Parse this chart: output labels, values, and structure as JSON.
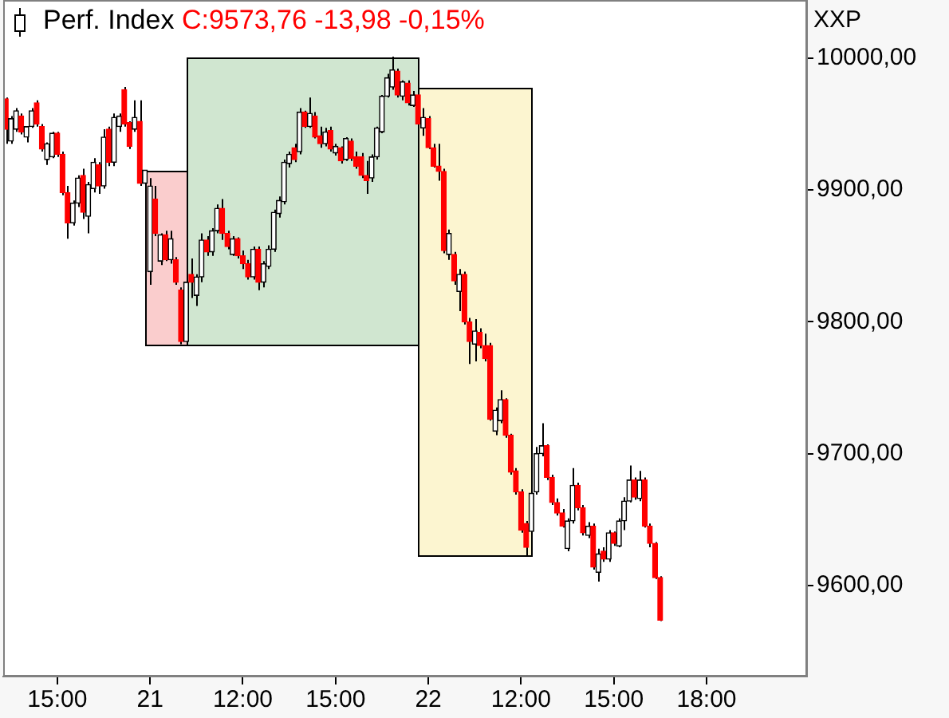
{
  "chart_data": {
    "type": "candlestick",
    "title": "Perf. Index",
    "subtitle": "C:9573,76 -13,98 -0,15%",
    "annotations": [
      "XXP"
    ],
    "categories": [
      null,
      null,
      null,
      null,
      null,
      null,
      null,
      null,
      null,
      null,
      "15:00",
      null,
      null,
      null,
      null,
      null,
      null,
      null,
      null,
      null,
      null,
      null,
      null,
      null,
      null,
      null,
      null,
      null,
      "21",
      null,
      null,
      null,
      null,
      null,
      null,
      null,
      null,
      null,
      null,
      null,
      null,
      null,
      null,
      null,
      null,
      null,
      "12:00",
      null,
      null,
      null,
      null,
      null,
      null,
      null,
      null,
      null,
      null,
      null,
      null,
      null,
      null,
      null,
      null,
      null,
      "15:00",
      null,
      null,
      null,
      null,
      null,
      null,
      null,
      null,
      null,
      null,
      null,
      null,
      null,
      null,
      null,
      null,
      null,
      "22",
      null,
      null,
      null,
      null,
      null,
      null,
      null,
      null,
      null,
      null,
      null,
      null,
      null,
      null,
      null,
      null,
      null,
      "12:00",
      null,
      null,
      null,
      null,
      null,
      null,
      null,
      null,
      null,
      null,
      null,
      null,
      null,
      null,
      null,
      null,
      null,
      "15:00",
      null,
      null,
      null,
      null,
      null,
      null,
      null,
      null,
      null,
      null,
      null,
      null,
      null,
      null,
      null,
      null,
      null,
      "18:00",
      null,
      null,
      null,
      null,
      null,
      null,
      null,
      null,
      null,
      null,
      null,
      null,
      null,
      null,
      null,
      null,
      null,
      null,
      null
    ],
    "ohlc": [
      [
        9969,
        9970,
        9935,
        9946
      ],
      [
        9937,
        9956,
        9935,
        9954
      ],
      [
        9946,
        9962,
        9944,
        9960
      ],
      [
        9956,
        9958,
        9942,
        9944
      ],
      [
        9940,
        9948,
        9936,
        9948
      ],
      [
        9948,
        9962,
        9947,
        9960
      ],
      [
        9966,
        9968,
        9948,
        9950
      ],
      [
        9948,
        9950,
        9929,
        9931
      ],
      [
        9923,
        9936,
        9919,
        9935
      ],
      [
        9925,
        9944,
        9924,
        9943
      ],
      [
        9943,
        9944,
        9925,
        9927
      ],
      [
        9927,
        9929,
        9896,
        9898
      ],
      [
        9898,
        9903,
        9863,
        9875
      ],
      [
        9875,
        9892,
        9873,
        9890
      ],
      [
        9890,
        9911,
        9887,
        9909
      ],
      [
        9911,
        9916,
        9878,
        9883
      ],
      [
        9880,
        9906,
        9867,
        9904
      ],
      [
        9901,
        9924,
        9898,
        9921
      ],
      [
        9919,
        9921,
        9897,
        9903
      ],
      [
        9903,
        9946,
        9901,
        9940
      ],
      [
        9946,
        9948,
        9918,
        9921
      ],
      [
        9921,
        9958,
        9918,
        9955
      ],
      [
        9948,
        9958,
        9944,
        9956
      ],
      [
        9976,
        9978,
        9948,
        9950
      ],
      [
        9951,
        9952,
        9931,
        9933
      ],
      [
        9946,
        9968,
        9944,
        9955
      ],
      [
        9952,
        9968,
        9903,
        9905
      ],
      [
        9905,
        9915,
        9903,
        9915
      ],
      [
        9838,
        9909,
        9828,
        9903
      ],
      [
        9893,
        9903,
        9865,
        9867
      ],
      [
        9846,
        9867,
        9843,
        9866
      ],
      [
        9866,
        9869,
        9846,
        9847
      ],
      [
        9847,
        9869,
        9844,
        9863
      ],
      [
        9847,
        9849,
        9828,
        9830
      ],
      [
        9824,
        9826,
        9783,
        9785
      ],
      [
        9785,
        9838,
        9783,
        9830
      ],
      [
        9836,
        9848,
        9818,
        9830
      ],
      [
        9820,
        9836,
        9812,
        9834
      ],
      [
        9834,
        9867,
        9830,
        9862
      ],
      [
        9862,
        9865,
        9850,
        9853
      ],
      [
        9853,
        9871,
        9850,
        9869
      ],
      [
        9869,
        9889,
        9867,
        9886
      ],
      [
        9886,
        9893,
        9862,
        9867
      ],
      [
        9867,
        9869,
        9855,
        9857
      ],
      [
        9851,
        9865,
        9850,
        9863
      ],
      [
        9863,
        9864,
        9848,
        9850
      ],
      [
        9850,
        9854,
        9840,
        9844
      ],
      [
        9844,
        9847,
        9832,
        9834
      ],
      [
        9834,
        9857,
        9832,
        9855
      ],
      [
        9855,
        9857,
        9824,
        9830
      ],
      [
        9830,
        9846,
        9826,
        9844
      ],
      [
        9842,
        9858,
        9840,
        9855
      ],
      [
        9855,
        9885,
        9853,
        9883
      ],
      [
        9882,
        9895,
        9879,
        9892
      ],
      [
        9891,
        9923,
        9889,
        9921
      ],
      [
        9920,
        9929,
        9917,
        9927
      ],
      [
        9932,
        9935,
        9921,
        9923
      ],
      [
        9929,
        9962,
        9927,
        9959
      ],
      [
        9959,
        9960,
        9947,
        9948
      ],
      [
        9948,
        9970,
        9947,
        9958
      ],
      [
        9956,
        9959,
        9939,
        9940
      ],
      [
        9941,
        9948,
        9932,
        9935
      ],
      [
        9935,
        9947,
        9933,
        9944
      ],
      [
        9945,
        9948,
        9929,
        9931
      ],
      [
        9928,
        9935,
        9926,
        9933
      ],
      [
        9932,
        9933,
        9920,
        9922
      ],
      [
        9923,
        9940,
        9922,
        9939
      ],
      [
        9937,
        9939,
        9922,
        9924
      ],
      [
        9925,
        9929,
        9916,
        9918
      ],
      [
        9925,
        9928,
        9909,
        9911
      ],
      [
        9911,
        9922,
        9897,
        9907
      ],
      [
        9909,
        9927,
        9906,
        9925
      ],
      [
        9925,
        9948,
        9923,
        9947
      ],
      [
        9944,
        9972,
        9943,
        9971
      ],
      [
        9971,
        9988,
        9970,
        9985
      ],
      [
        9978,
        10001,
        9976,
        9991
      ],
      [
        9990,
        9992,
        9970,
        9972
      ],
      [
        9971,
        9983,
        9968,
        9982
      ],
      [
        9981,
        9983,
        9964,
        9966
      ],
      [
        9964,
        9975,
        9963,
        9972
      ],
      [
        9972,
        9977,
        9947,
        9950
      ],
      [
        9947,
        9962,
        9941,
        9955
      ],
      [
        9954,
        9956,
        9931,
        9932
      ],
      [
        9932,
        9935,
        9917,
        9918
      ],
      [
        9918,
        9935,
        9907,
        9914
      ],
      [
        9914,
        9916,
        9852,
        9854
      ],
      [
        9851,
        9870,
        9847,
        9867
      ],
      [
        9851,
        9853,
        9828,
        9831
      ],
      [
        9823,
        9840,
        9808,
        9836
      ],
      [
        9836,
        9838,
        9798,
        9800
      ],
      [
        9800,
        9803,
        9768,
        9785
      ],
      [
        9783,
        9802,
        9770,
        9793
      ],
      [
        9792,
        9795,
        9780,
        9782
      ],
      [
        9782,
        9791,
        9770,
        9772
      ],
      [
        9782,
        9784,
        9725,
        9726
      ],
      [
        9717,
        9735,
        9714,
        9733
      ],
      [
        9725,
        9748,
        9723,
        9741
      ],
      [
        9741,
        9742,
        9712,
        9714
      ],
      [
        9714,
        9715,
        9684,
        9686
      ],
      [
        9687,
        9689,
        9669,
        9671
      ],
      [
        9671,
        9673,
        9640,
        9642
      ],
      [
        9647,
        9649,
        9623,
        9629
      ],
      [
        9641,
        9673,
        9636,
        9670
      ],
      [
        9671,
        9705,
        9669,
        9700
      ],
      [
        9700,
        9723,
        9698,
        9706
      ],
      [
        9706,
        9707,
        9680,
        9682
      ],
      [
        9682,
        9684,
        9661,
        9663
      ],
      [
        9663,
        9666,
        9653,
        9655
      ],
      [
        9655,
        9658,
        9644,
        9645
      ],
      [
        9628,
        9651,
        9626,
        9649
      ],
      [
        9649,
        9689,
        9647,
        9676
      ],
      [
        9676,
        9678,
        9657,
        9659
      ],
      [
        9659,
        9661,
        9638,
        9640
      ],
      [
        9638,
        9648,
        9636,
        9645
      ],
      [
        9645,
        9647,
        9612,
        9614
      ],
      [
        9610,
        9628,
        9603,
        9624
      ],
      [
        9626,
        9629,
        9618,
        9620
      ],
      [
        9620,
        9642,
        9618,
        9640
      ],
      [
        9640,
        9641,
        9630,
        9632
      ],
      [
        9630,
        9651,
        9629,
        9649
      ],
      [
        9649,
        9667,
        9642,
        9664
      ],
      [
        9664,
        9691,
        9663,
        9680
      ],
      [
        9680,
        9682,
        9665,
        9667
      ],
      [
        9666,
        9687,
        9664,
        9680
      ],
      [
        9680,
        9682,
        9644,
        9645
      ],
      [
        9645,
        9647,
        9629,
        9632
      ],
      [
        9632,
        9633,
        9605,
        9606
      ],
      [
        9606,
        9607,
        9573,
        9573.76
      ],
      null,
      null,
      null,
      null,
      null,
      null,
      null,
      null,
      null,
      null,
      null,
      null,
      null,
      null,
      null,
      null,
      null,
      null,
      null,
      null,
      null,
      null,
      null,
      null,
      null,
      null,
      null,
      null
    ],
    "colors": [
      "#ff0000",
      "#000000",
      "#000000",
      "#ff0000",
      "#000000",
      "#000000",
      "#ff0000",
      "#ff0000",
      "#000000",
      "#000000",
      "#ff0000",
      "#ff0000",
      "#ff0000",
      "#000000",
      "#000000",
      "#ff0000",
      "#000000",
      "#000000",
      "#ff0000",
      "#000000",
      "#ff0000",
      "#000000",
      "#000000",
      "#ff0000",
      "#ff0000",
      "#000000",
      "#ff0000",
      "#000000",
      "#000000",
      "#ff0000",
      "#000000",
      "#ff0000",
      "#000000",
      "#ff0000",
      "#ff0000",
      "#000000",
      "#ff0000",
      "#000000",
      "#000000",
      "#ff0000",
      "#000000",
      "#000000",
      "#ff0000",
      "#ff0000",
      "#000000",
      "#ff0000",
      "#ff0000",
      "#ff0000",
      "#000000",
      "#ff0000",
      "#000000",
      "#000000",
      "#000000",
      "#000000",
      "#000000",
      "#000000",
      "#ff0000",
      "#000000",
      "#ff0000",
      "#000000",
      "#ff0000",
      "#ff0000",
      "#000000",
      "#ff0000",
      "#000000",
      "#ff0000",
      "#000000",
      "#ff0000",
      "#ff0000",
      "#ff0000",
      "#ff0000",
      "#000000",
      "#000000",
      "#000000",
      "#000000",
      "#000000",
      "#ff0000",
      "#000000",
      "#ff0000",
      "#000000",
      "#ff0000",
      "#000000",
      "#ff0000",
      "#ff0000",
      "#ff0000",
      "#ff0000",
      "#000000",
      "#ff0000",
      "#000000",
      "#ff0000",
      "#ff0000",
      "#000000",
      "#ff0000",
      "#ff0000",
      "#ff0000",
      "#000000",
      "#000000",
      "#ff0000",
      "#ff0000",
      "#ff0000",
      "#ff0000",
      "#ff0000",
      "#000000",
      "#000000",
      "#000000",
      "#ff0000",
      "#ff0000",
      "#ff0000",
      "#ff0000",
      "#000000",
      "#000000",
      "#ff0000",
      "#ff0000",
      "#000000",
      "#ff0000",
      "#000000",
      "#ff0000",
      "#000000",
      "#ff0000",
      "#000000",
      "#000000",
      "#000000",
      "#ff0000",
      "#000000",
      "#ff0000",
      "#ff0000",
      "#ff0000",
      "#ff0000",
      null,
      null,
      null,
      null,
      null,
      null,
      null,
      null,
      null,
      null,
      null,
      null,
      null,
      null,
      null,
      null,
      null,
      null,
      null,
      null,
      null,
      null,
      null,
      null,
      null,
      null,
      null,
      null
    ],
    "ylim": [
      9531,
      10044
    ],
    "yticks": [
      {
        "value": 9600,
        "label": "9600,00"
      },
      {
        "value": 9700,
        "label": "9700,00"
      },
      {
        "value": 9800,
        "label": "9800,00"
      },
      {
        "value": 9900,
        "label": "9900,00"
      },
      {
        "value": 10000,
        "label": "10000,00"
      }
    ]
  }
}
